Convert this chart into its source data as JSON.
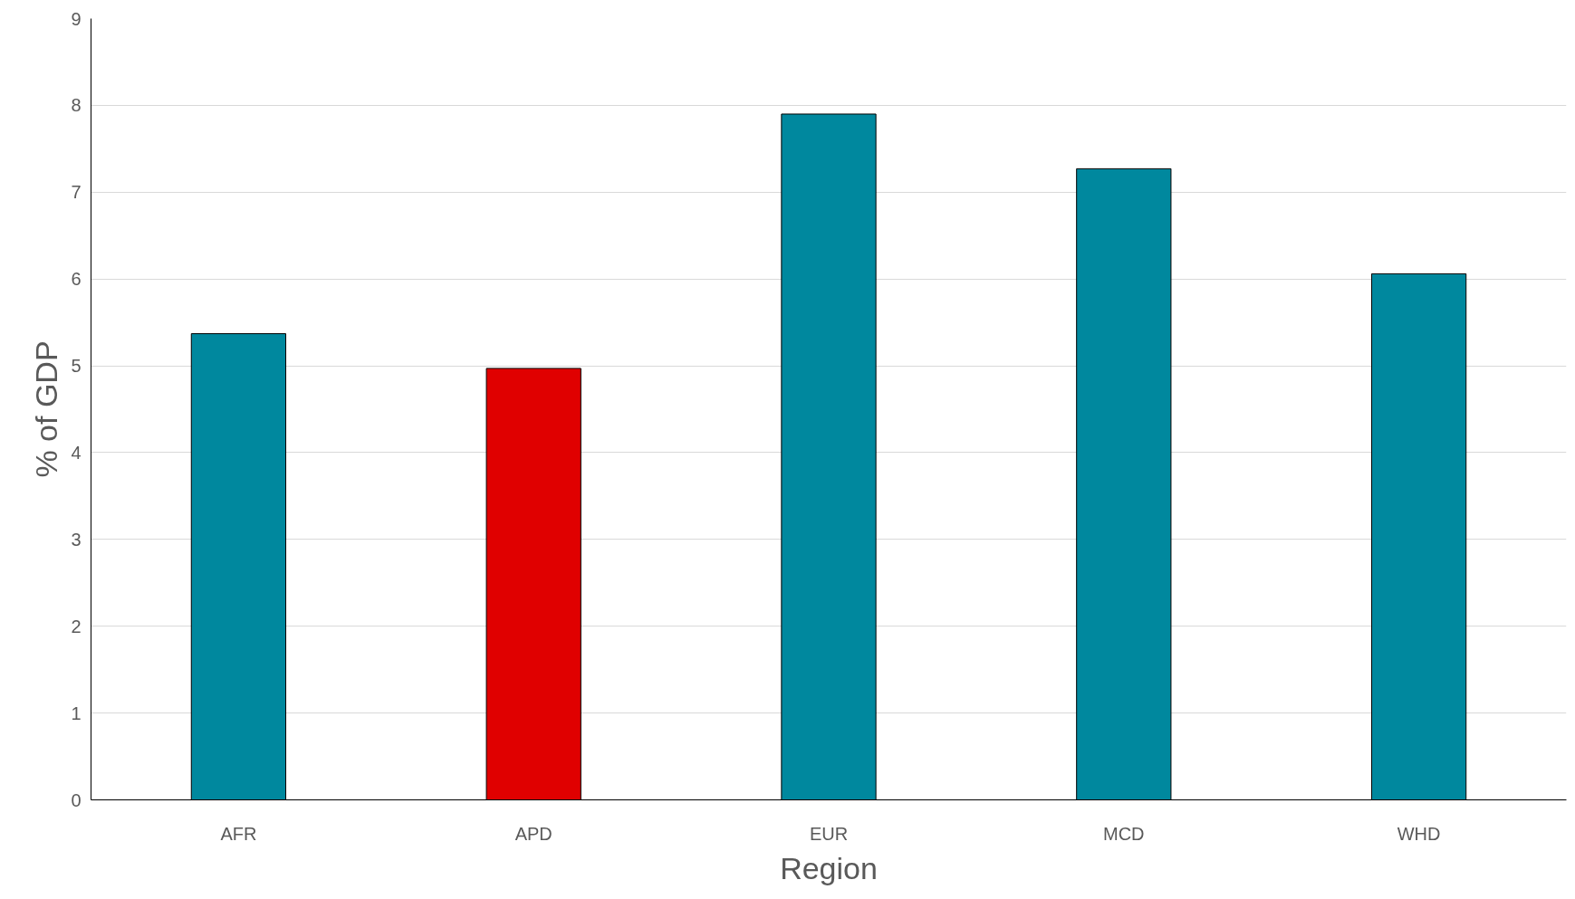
{
  "chart_data": {
    "type": "bar",
    "xlabel": "Region",
    "ylabel": "% of GDP",
    "categories": [
      "AFR",
      "APD",
      "EUR",
      "MCD",
      "WHD"
    ],
    "values": [
      5.37,
      4.97,
      7.9,
      7.27,
      6.06
    ],
    "colors": [
      "#00889e",
      "#e00000",
      "#00889e",
      "#00889e",
      "#00889e"
    ],
    "ylim": [
      0,
      9
    ],
    "yticks": [
      0,
      1,
      2,
      3,
      4,
      5,
      6,
      7,
      8,
      9
    ],
    "grid": "y"
  }
}
